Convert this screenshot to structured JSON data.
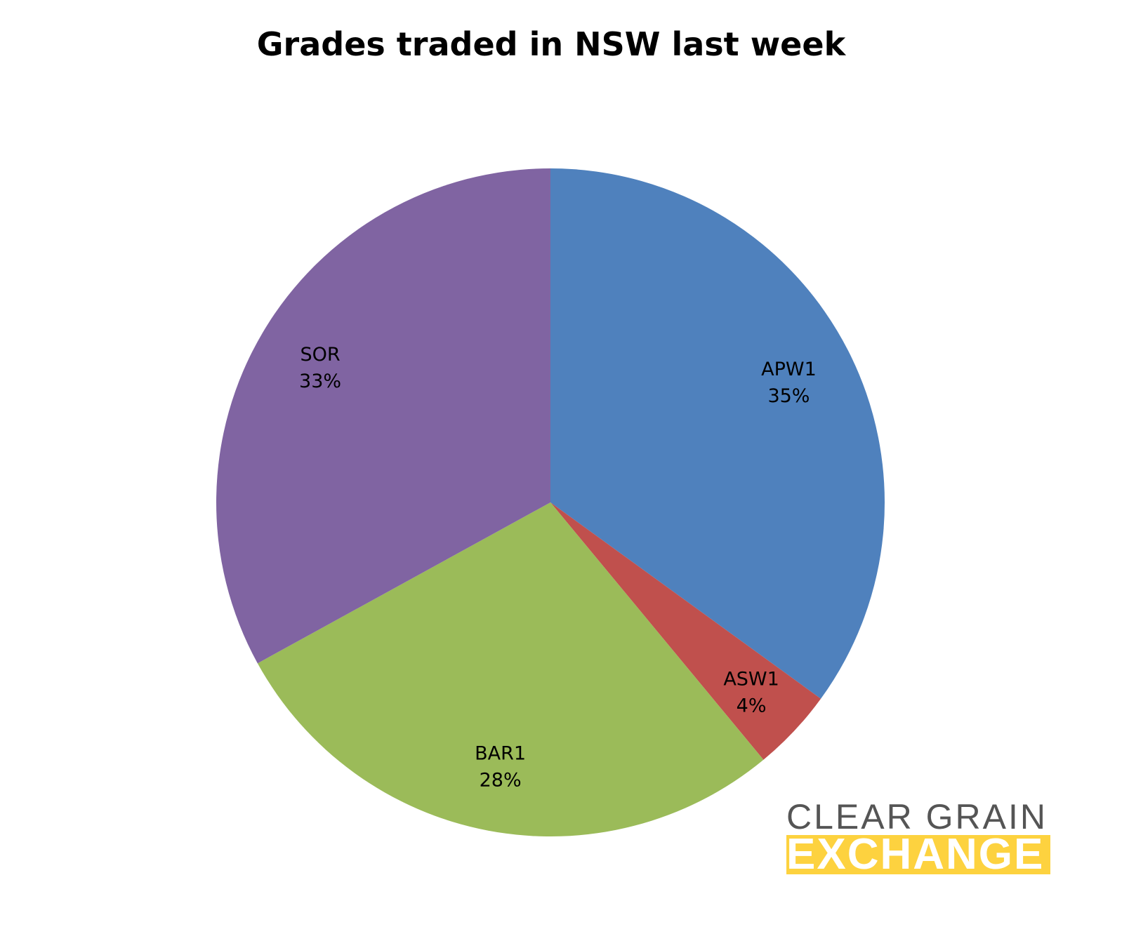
{
  "chart_data": {
    "type": "pie",
    "title": "Grades traded in NSW last week",
    "start_angle": "12 o'clock, clockwise",
    "slices": [
      {
        "label": "APW1",
        "value": 35,
        "display": "35%",
        "color": "#4f81bd"
      },
      {
        "label": "ASW1",
        "value": 4,
        "display": "4%",
        "color": "#c0504d"
      },
      {
        "label": "BAR1",
        "value": 28,
        "display": "28%",
        "color": "#9bbb59"
      },
      {
        "label": "SOR",
        "value": 33,
        "display": "33%",
        "color": "#8064a2"
      }
    ],
    "legend": "none"
  },
  "logo": {
    "line1": "CLEAR GRAIN",
    "line2": "EXCHANGE",
    "colors": {
      "text": "#555555",
      "bar": "#fdd23f"
    }
  }
}
